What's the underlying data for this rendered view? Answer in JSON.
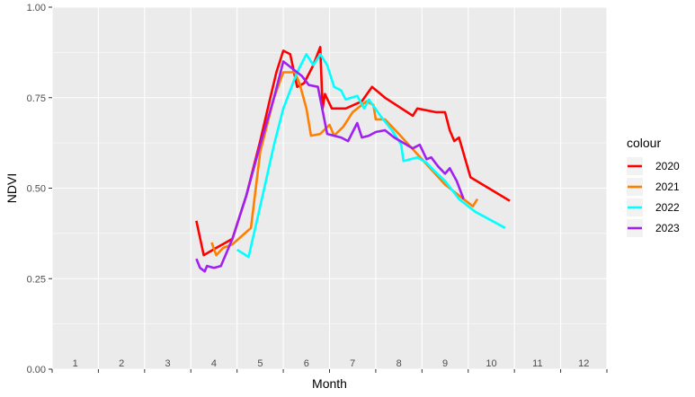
{
  "chart_data": {
    "type": "line",
    "title": "",
    "xlabel": "Month",
    "ylabel": "NDVI",
    "xlim": [
      0.5,
      12.5
    ],
    "ylim": [
      0,
      1
    ],
    "x_ticks": [
      "1",
      "2",
      "3",
      "4",
      "5",
      "6",
      "7",
      "8",
      "9",
      "10",
      "11",
      "12"
    ],
    "y_ticks": [
      "0.00",
      "0.25",
      "0.50",
      "0.75",
      "1.00"
    ],
    "y_tick_values": [
      0,
      0.25,
      0.5,
      0.75,
      1.0
    ],
    "grid": true,
    "legend": {
      "title": "colour",
      "placement": "right"
    },
    "series": [
      {
        "name": "2020",
        "color": "#FF0000",
        "points": [
          [
            3.62,
            0.41
          ],
          [
            3.78,
            0.315
          ],
          [
            4.05,
            0.335
          ],
          [
            4.4,
            0.36
          ],
          [
            4.7,
            0.48
          ],
          [
            5.0,
            0.63
          ],
          [
            5.2,
            0.74
          ],
          [
            5.35,
            0.82
          ],
          [
            5.5,
            0.88
          ],
          [
            5.65,
            0.87
          ],
          [
            5.8,
            0.78
          ],
          [
            5.95,
            0.79
          ],
          [
            6.15,
            0.84
          ],
          [
            6.3,
            0.89
          ],
          [
            6.35,
            0.72
          ],
          [
            6.4,
            0.76
          ],
          [
            6.55,
            0.72
          ],
          [
            6.85,
            0.72
          ],
          [
            7.2,
            0.74
          ],
          [
            7.42,
            0.78
          ],
          [
            7.7,
            0.75
          ],
          [
            8.3,
            0.7
          ],
          [
            8.4,
            0.72
          ],
          [
            8.8,
            0.71
          ],
          [
            9.0,
            0.71
          ],
          [
            9.1,
            0.66
          ],
          [
            9.2,
            0.63
          ],
          [
            9.3,
            0.64
          ],
          [
            9.55,
            0.53
          ],
          [
            10.4,
            0.465
          ]
        ]
      },
      {
        "name": "2021",
        "color": "#FF8000",
        "points": [
          [
            3.95,
            0.35
          ],
          [
            4.05,
            0.315
          ],
          [
            4.2,
            0.335
          ],
          [
            4.4,
            0.345
          ],
          [
            4.8,
            0.39
          ],
          [
            5.0,
            0.6
          ],
          [
            5.3,
            0.75
          ],
          [
            5.5,
            0.82
          ],
          [
            5.75,
            0.82
          ],
          [
            5.85,
            0.79
          ],
          [
            6.0,
            0.72
          ],
          [
            6.1,
            0.645
          ],
          [
            6.3,
            0.65
          ],
          [
            6.5,
            0.675
          ],
          [
            6.6,
            0.645
          ],
          [
            6.8,
            0.67
          ],
          [
            7.0,
            0.71
          ],
          [
            7.3,
            0.74
          ],
          [
            7.45,
            0.73
          ],
          [
            7.5,
            0.69
          ],
          [
            7.7,
            0.69
          ],
          [
            8.0,
            0.65
          ],
          [
            8.5,
            0.58
          ],
          [
            9.0,
            0.51
          ],
          [
            9.6,
            0.45
          ],
          [
            9.7,
            0.47
          ]
        ]
      },
      {
        "name": "2022",
        "color": "#00FFFF",
        "points": [
          [
            4.5,
            0.33
          ],
          [
            4.75,
            0.31
          ],
          [
            5.0,
            0.45
          ],
          [
            5.3,
            0.62
          ],
          [
            5.5,
            0.72
          ],
          [
            5.8,
            0.82
          ],
          [
            6.0,
            0.87
          ],
          [
            6.15,
            0.84
          ],
          [
            6.3,
            0.87
          ],
          [
            6.45,
            0.84
          ],
          [
            6.6,
            0.78
          ],
          [
            6.75,
            0.77
          ],
          [
            6.85,
            0.745
          ],
          [
            7.1,
            0.755
          ],
          [
            7.25,
            0.72
          ],
          [
            7.35,
            0.745
          ],
          [
            7.6,
            0.7
          ],
          [
            7.85,
            0.66
          ],
          [
            8.05,
            0.62
          ],
          [
            8.1,
            0.575
          ],
          [
            8.25,
            0.58
          ],
          [
            8.4,
            0.585
          ],
          [
            8.6,
            0.57
          ],
          [
            8.75,
            0.55
          ],
          [
            9.0,
            0.52
          ],
          [
            9.3,
            0.47
          ],
          [
            9.65,
            0.435
          ],
          [
            10.3,
            0.39
          ]
        ]
      },
      {
        "name": "2023",
        "color": "#A020F0",
        "points": [
          [
            3.62,
            0.305
          ],
          [
            3.7,
            0.28
          ],
          [
            3.8,
            0.27
          ],
          [
            3.85,
            0.285
          ],
          [
            4.0,
            0.28
          ],
          [
            4.15,
            0.285
          ],
          [
            4.4,
            0.36
          ],
          [
            4.7,
            0.48
          ],
          [
            5.0,
            0.62
          ],
          [
            5.3,
            0.75
          ],
          [
            5.5,
            0.85
          ],
          [
            5.7,
            0.83
          ],
          [
            5.9,
            0.81
          ],
          [
            6.05,
            0.785
          ],
          [
            6.25,
            0.78
          ],
          [
            6.45,
            0.65
          ],
          [
            6.75,
            0.64
          ],
          [
            6.9,
            0.63
          ],
          [
            7.1,
            0.68
          ],
          [
            7.2,
            0.64
          ],
          [
            7.35,
            0.645
          ],
          [
            7.5,
            0.655
          ],
          [
            7.7,
            0.66
          ],
          [
            7.9,
            0.64
          ],
          [
            8.1,
            0.625
          ],
          [
            8.3,
            0.61
          ],
          [
            8.45,
            0.62
          ],
          [
            8.6,
            0.58
          ],
          [
            8.7,
            0.585
          ],
          [
            8.85,
            0.56
          ],
          [
            9.0,
            0.54
          ],
          [
            9.1,
            0.555
          ],
          [
            9.25,
            0.52
          ],
          [
            9.4,
            0.47
          ]
        ]
      }
    ]
  }
}
